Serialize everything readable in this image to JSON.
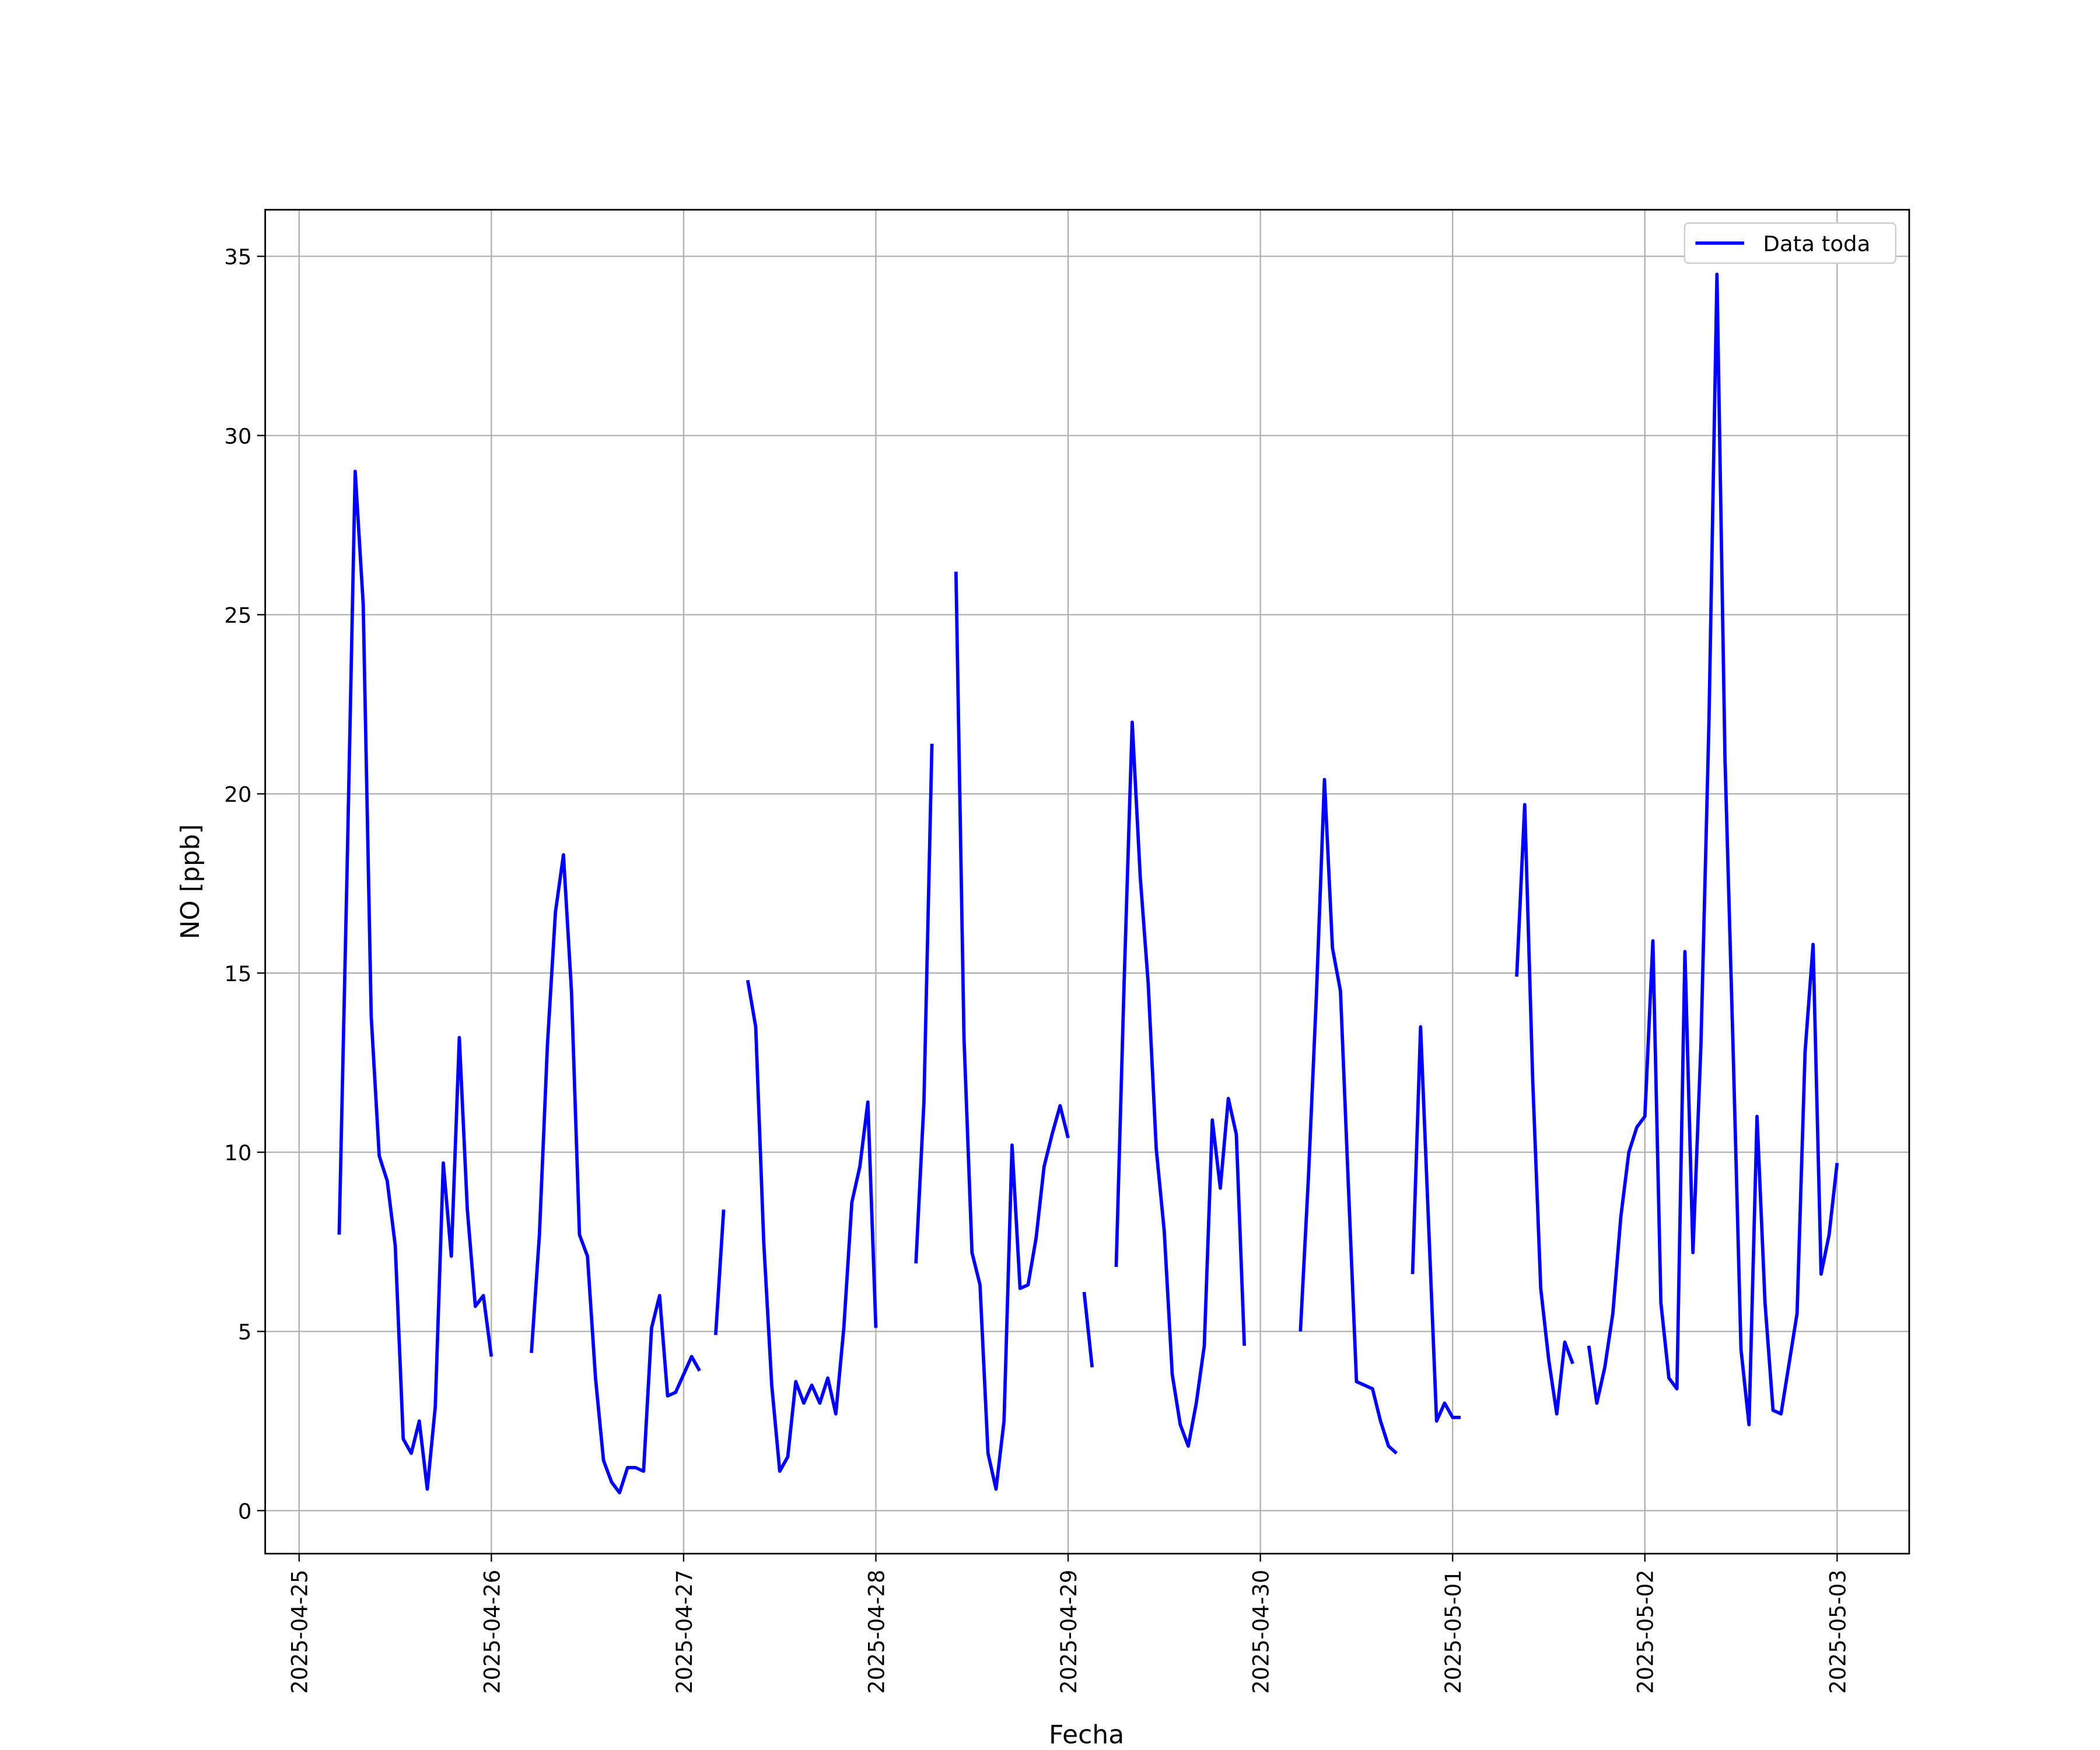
{
  "chart_data": {
    "type": "line",
    "xlabel": "Fecha",
    "ylabel": "NO [ppb]",
    "x": [
      "2025-04-25 05:00",
      "2025-04-25 06:00",
      "2025-04-25 07:00",
      "2025-04-25 08:00",
      "2025-04-25 09:00",
      "2025-04-25 10:00",
      "2025-04-25 11:00",
      "2025-04-25 12:00",
      "2025-04-25 13:00",
      "2025-04-25 14:00",
      "2025-04-25 15:00",
      "2025-04-25 16:00",
      "2025-04-25 17:00",
      "2025-04-25 18:00",
      "2025-04-25 19:00",
      "2025-04-25 20:00",
      "2025-04-25 21:00",
      "2025-04-25 22:00",
      "2025-04-25 23:00",
      "2025-04-26 00:00",
      "2025-04-26 01:00",
      "2025-04-26 02:00",
      "2025-04-26 03:00",
      "2025-04-26 04:00",
      "2025-04-26 05:00",
      "2025-04-26 06:00",
      "2025-04-26 07:00",
      "2025-04-26 08:00",
      "2025-04-26 09:00",
      "2025-04-26 10:00",
      "2025-04-26 11:00",
      "2025-04-26 12:00",
      "2025-04-26 13:00",
      "2025-04-26 14:00",
      "2025-04-26 15:00",
      "2025-04-26 16:00",
      "2025-04-26 17:00",
      "2025-04-26 18:00",
      "2025-04-26 19:00",
      "2025-04-26 20:00",
      "2025-04-26 21:00",
      "2025-04-26 22:00",
      "2025-04-26 23:00",
      "2025-04-27 00:00",
      "2025-04-27 01:00",
      "2025-04-27 02:00",
      "2025-04-27 03:00",
      "2025-04-27 04:00",
      "2025-04-27 05:00",
      "2025-04-27 06:00",
      "2025-04-27 07:00",
      "2025-04-27 08:00",
      "2025-04-27 09:00",
      "2025-04-27 10:00",
      "2025-04-27 11:00",
      "2025-04-27 12:00",
      "2025-04-27 13:00",
      "2025-04-27 14:00",
      "2025-04-27 15:00",
      "2025-04-27 16:00",
      "2025-04-27 17:00",
      "2025-04-27 18:00",
      "2025-04-27 19:00",
      "2025-04-27 20:00",
      "2025-04-27 21:00",
      "2025-04-27 22:00",
      "2025-04-27 23:00",
      "2025-04-28 00:00",
      "2025-04-28 01:00",
      "2025-04-28 02:00",
      "2025-04-28 03:00",
      "2025-04-28 04:00",
      "2025-04-28 05:00",
      "2025-04-28 06:00",
      "2025-04-28 07:00",
      "2025-04-28 08:00",
      "2025-04-28 09:00",
      "2025-04-28 10:00",
      "2025-04-28 11:00",
      "2025-04-28 12:00",
      "2025-04-28 13:00",
      "2025-04-28 14:00",
      "2025-04-28 15:00",
      "2025-04-28 16:00",
      "2025-04-28 17:00",
      "2025-04-28 18:00",
      "2025-04-28 19:00",
      "2025-04-28 20:00",
      "2025-04-28 21:00",
      "2025-04-28 22:00",
      "2025-04-28 23:00",
      "2025-04-29 00:00",
      "2025-04-29 01:00",
      "2025-04-29 02:00",
      "2025-04-29 03:00",
      "2025-04-29 04:00",
      "2025-04-29 05:00",
      "2025-04-29 06:00",
      "2025-04-29 07:00",
      "2025-04-29 08:00",
      "2025-04-29 09:00",
      "2025-04-29 10:00",
      "2025-04-29 11:00",
      "2025-04-29 12:00",
      "2025-04-29 13:00",
      "2025-04-29 14:00",
      "2025-04-29 15:00",
      "2025-04-29 16:00",
      "2025-04-29 17:00",
      "2025-04-29 18:00",
      "2025-04-29 19:00",
      "2025-04-29 20:00",
      "2025-04-29 21:00",
      "2025-04-29 22:00",
      "2025-04-29 23:00",
      "2025-04-30 00:00",
      "2025-04-30 01:00",
      "2025-04-30 02:00",
      "2025-04-30 03:00",
      "2025-04-30 04:00",
      "2025-04-30 05:00",
      "2025-04-30 06:00",
      "2025-04-30 07:00",
      "2025-04-30 08:00",
      "2025-04-30 09:00",
      "2025-04-30 10:00",
      "2025-04-30 11:00",
      "2025-04-30 12:00",
      "2025-04-30 13:00",
      "2025-04-30 14:00",
      "2025-04-30 15:00",
      "2025-04-30 16:00",
      "2025-04-30 17:00",
      "2025-04-30 18:00",
      "2025-04-30 19:00",
      "2025-04-30 20:00",
      "2025-04-30 21:00",
      "2025-04-30 22:00",
      "2025-04-30 23:00",
      "2025-05-01 00:00",
      "2025-05-01 01:00",
      "2025-05-01 02:00",
      "2025-05-01 03:00",
      "2025-05-01 04:00",
      "2025-05-01 05:00",
      "2025-05-01 06:00",
      "2025-05-01 07:00",
      "2025-05-01 08:00",
      "2025-05-01 09:00",
      "2025-05-01 10:00",
      "2025-05-01 11:00",
      "2025-05-01 12:00",
      "2025-05-01 13:00",
      "2025-05-01 14:00",
      "2025-05-01 15:00",
      "2025-05-01 16:00",
      "2025-05-01 17:00",
      "2025-05-01 18:00",
      "2025-05-01 19:00",
      "2025-05-01 20:00",
      "2025-05-01 21:00",
      "2025-05-01 22:00",
      "2025-05-01 23:00",
      "2025-05-02 00:00",
      "2025-05-02 01:00",
      "2025-05-02 02:00",
      "2025-05-02 03:00",
      "2025-05-02 04:00",
      "2025-05-02 05:00",
      "2025-05-02 06:00",
      "2025-05-02 07:00",
      "2025-05-02 08:00",
      "2025-05-02 09:00",
      "2025-05-02 10:00",
      "2025-05-02 11:00",
      "2025-05-02 12:00",
      "2025-05-02 13:00",
      "2025-05-02 14:00",
      "2025-05-02 15:00",
      "2025-05-02 16:00",
      "2025-05-02 17:00",
      "2025-05-02 18:00",
      "2025-05-02 19:00",
      "2025-05-02 20:00",
      "2025-05-02 21:00",
      "2025-05-02 22:00",
      "2025-05-02 23:00",
      "2025-05-03 00:00"
    ],
    "series": [
      {
        "name": "Data toda",
        "color": "#0000ff",
        "values": [
          7.7,
          18,
          29,
          25.3,
          13.8,
          9.9,
          9.2,
          7.4,
          2.0,
          1.6,
          2.5,
          0.6,
          2.9,
          9.7,
          7.1,
          13.2,
          8.4,
          5.7,
          6.0,
          4.3,
          null,
          null,
          null,
          null,
          4.4,
          7.7,
          13,
          16.7,
          18.3,
          14.5,
          7.7,
          7.1,
          3.7,
          1.4,
          0.8,
          0.5,
          1.2,
          1.2,
          1.1,
          5.1,
          6.0,
          3.2,
          3.3,
          3.8,
          4.3,
          3.9,
          null,
          4.9,
          8.4,
          null,
          null,
          14.8,
          13.5,
          7.5,
          3.5,
          1.1,
          1.5,
          3.6,
          3.0,
          3.5,
          3.0,
          3.7,
          2.7,
          5.1,
          8.6,
          9.6,
          11.4,
          5.1,
          null,
          null,
          null,
          null,
          6.9,
          11.4,
          21.4,
          null,
          null,
          26.2,
          13.2,
          7.2,
          6.3,
          1.6,
          0.6,
          2.5,
          10.2,
          6.2,
          6.3,
          7.6,
          9.6,
          10.5,
          11.3,
          10.4,
          null,
          6.1,
          4.0,
          null,
          null,
          6.8,
          14.8,
          22.0,
          17.7,
          14.7,
          10.1,
          7.8,
          3.8,
          2.4,
          1.8,
          3.0,
          4.6,
          10.9,
          9.0,
          11.5,
          10.5,
          4.6,
          null,
          null,
          null,
          null,
          null,
          null,
          5.0,
          9.3,
          14.4,
          20.4,
          15.7,
          14.5,
          9.0,
          3.6,
          3.5,
          3.4,
          2.5,
          1.8,
          1.6,
          null,
          6.6,
          13.5,
          8.0,
          2.5,
          3.0,
          2.6,
          2.6,
          null,
          null,
          null,
          null,
          null,
          null,
          14.9,
          19.7,
          12.0,
          6.2,
          4.2,
          2.7,
          4.7,
          4.1,
          null,
          4.6,
          3.0,
          4.0,
          5.5,
          8.2,
          10.0,
          10.7,
          11.0,
          15.9,
          5.8,
          3.7,
          3.4,
          15.6,
          7.2,
          13.0,
          22,
          34.5,
          21,
          13,
          4.5,
          2.4,
          11.0,
          5.8,
          2.8,
          2.7,
          4.1,
          5.5,
          12.8,
          15.8,
          6.6,
          7.7,
          9.7
        ]
      }
    ],
    "xlim": [
      "2025-04-24 19:46",
      "2025-05-03 09:00"
    ],
    "xticks": [
      "2025-04-25",
      "2025-04-26",
      "2025-04-27",
      "2025-04-28",
      "2025-04-29",
      "2025-04-30",
      "2025-05-01",
      "2025-05-02",
      "2025-05-03"
    ],
    "ylim": [
      -1.2,
      36.3
    ],
    "yticks": [
      0,
      5,
      10,
      15,
      20,
      25,
      30,
      35
    ],
    "grid": true,
    "legend": "upper right"
  }
}
